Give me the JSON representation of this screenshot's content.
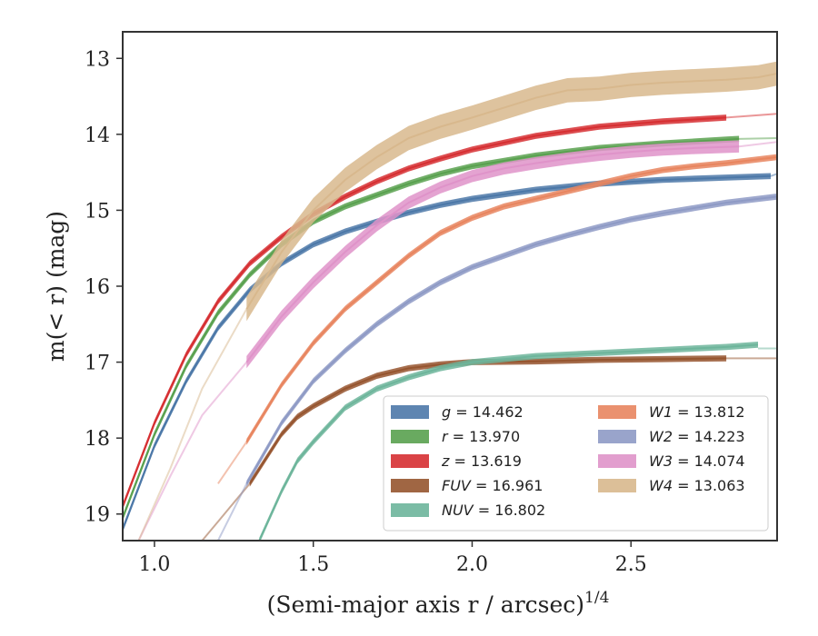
{
  "chart_data": {
    "type": "line",
    "xlabel": "(Semi-major axis r / arcsec)",
    "xlabel_sup": "1/4",
    "ylabel": "m(< r) (mag)",
    "xlim": [
      0.9,
      2.96
    ],
    "ylim": [
      19.35,
      12.65
    ],
    "y_inverted": true,
    "grid": false,
    "legend_position": "lower-right",
    "xticks": [
      1.0,
      1.5,
      2.0,
      2.5
    ],
    "xtick_labels": [
      "1.0",
      "1.5",
      "2.0",
      "2.5"
    ],
    "yticks": [
      13,
      14,
      15,
      16,
      17,
      18,
      19
    ],
    "ytick_labels": [
      "13",
      "14",
      "15",
      "16",
      "17",
      "18",
      "19"
    ],
    "series": [
      {
        "key": "g",
        "name": "g",
        "value": "14.462",
        "color": "#4c78a8",
        "x": [
          0.9,
          1.0,
          1.1,
          1.2,
          1.3,
          1.4,
          1.5,
          1.6,
          1.7,
          1.8,
          1.9,
          2.0,
          2.2,
          2.4,
          2.6,
          2.8,
          2.94
        ],
        "y": [
          19.2,
          18.1,
          17.25,
          16.55,
          16.05,
          15.7,
          15.45,
          15.28,
          15.15,
          15.03,
          14.93,
          14.85,
          14.73,
          14.65,
          14.6,
          14.57,
          14.55
        ],
        "x_model": [
          2.94,
          2.96
        ],
        "y_model": [
          14.55,
          14.52
        ],
        "band": 0.04
      },
      {
        "key": "r",
        "name": "r",
        "value": "13.970",
        "color": "#59a14f",
        "x": [
          0.9,
          1.0,
          1.1,
          1.2,
          1.3,
          1.4,
          1.5,
          1.6,
          1.7,
          1.8,
          1.9,
          2.0,
          2.2,
          2.4,
          2.6,
          2.8,
          2.84
        ],
        "y": [
          19.05,
          17.95,
          17.05,
          16.35,
          15.85,
          15.45,
          15.15,
          14.95,
          14.8,
          14.65,
          14.52,
          14.42,
          14.28,
          14.18,
          14.12,
          14.07,
          14.06
        ],
        "x_model": [
          2.84,
          2.96
        ],
        "y_model": [
          14.06,
          14.05
        ],
        "band": 0.04
      },
      {
        "key": "z",
        "name": "z",
        "value": "13.619",
        "color": "#d62f32",
        "x": [
          0.9,
          1.0,
          1.1,
          1.2,
          1.3,
          1.4,
          1.5,
          1.6,
          1.7,
          1.8,
          1.9,
          2.0,
          2.2,
          2.4,
          2.6,
          2.8
        ],
        "y": [
          18.9,
          17.8,
          16.9,
          16.2,
          15.7,
          15.35,
          15.05,
          14.82,
          14.62,
          14.45,
          14.32,
          14.2,
          14.02,
          13.9,
          13.83,
          13.78
        ],
        "x_model": [
          2.8,
          2.96
        ],
        "y_model": [
          13.78,
          13.73
        ],
        "band": 0.04
      },
      {
        "key": "FUV",
        "name": "FUV",
        "value": "16.961",
        "color": "#96552f",
        "x": [
          1.3,
          1.4,
          1.45,
          1.5,
          1.6,
          1.7,
          1.8,
          1.9,
          2.0,
          2.2,
          2.4,
          2.6,
          2.8
        ],
        "y": [
          18.6,
          17.95,
          17.72,
          17.58,
          17.35,
          17.18,
          17.08,
          17.03,
          17.0,
          16.99,
          16.97,
          16.96,
          16.95
        ],
        "x_model": [
          1.15,
          1.2,
          1.25,
          1.3
        ],
        "y_model": [
          19.35,
          19.1,
          18.85,
          18.6
        ],
        "x_model2": [
          2.8,
          2.96
        ],
        "y_model2": [
          16.95,
          16.95
        ],
        "band": 0.04
      },
      {
        "key": "NUV",
        "name": "NUV",
        "value": "16.802",
        "color": "#6db59b",
        "x": [
          1.33,
          1.4,
          1.45,
          1.5,
          1.6,
          1.7,
          1.8,
          1.9,
          2.0,
          2.2,
          2.4,
          2.6,
          2.8,
          2.9
        ],
        "y": [
          19.35,
          18.7,
          18.3,
          18.05,
          17.6,
          17.35,
          17.2,
          17.08,
          17.0,
          16.92,
          16.88,
          16.84,
          16.8,
          16.77
        ],
        "x_model": [
          1.29,
          1.33
        ],
        "y_model": [
          19.35,
          19.35
        ],
        "x_model2": [
          2.9,
          2.96
        ],
        "y_model2": [
          16.82,
          16.82
        ],
        "band": 0.04
      },
      {
        "key": "W1",
        "name": "W1",
        "value": "13.812",
        "color": "#e8855f",
        "x": [
          1.29,
          1.4,
          1.5,
          1.6,
          1.7,
          1.8,
          1.9,
          2.0,
          2.1,
          2.2,
          2.3,
          2.4,
          2.5,
          2.6,
          2.7,
          2.8,
          2.96
        ],
        "y": [
          18.05,
          17.3,
          16.75,
          16.3,
          15.95,
          15.6,
          15.3,
          15.1,
          14.95,
          14.85,
          14.75,
          14.65,
          14.55,
          14.47,
          14.42,
          14.38,
          14.3
        ],
        "x_model": [
          1.2,
          1.29
        ],
        "y_model": [
          18.6,
          18.05
        ],
        "band": 0.04
      },
      {
        "key": "W2",
        "name": "W2",
        "value": "14.223",
        "color": "#8e9ac5",
        "x": [
          1.29,
          1.4,
          1.5,
          1.6,
          1.7,
          1.8,
          1.9,
          2.0,
          2.1,
          2.2,
          2.3,
          2.4,
          2.5,
          2.6,
          2.7,
          2.8,
          2.96
        ],
        "y": [
          18.6,
          17.8,
          17.25,
          16.85,
          16.5,
          16.2,
          15.95,
          15.75,
          15.6,
          15.45,
          15.33,
          15.22,
          15.12,
          15.04,
          14.97,
          14.9,
          14.82
        ],
        "x_model": [
          1.2,
          1.29
        ],
        "y_model": [
          19.35,
          18.6
        ],
        "band": 0.04
      },
      {
        "key": "W3",
        "name": "W3",
        "value": "14.074",
        "color": "#df93c9",
        "x": [
          1.29,
          1.4,
          1.5,
          1.6,
          1.7,
          1.8,
          1.9,
          2.0,
          2.1,
          2.2,
          2.3,
          2.4,
          2.5,
          2.6,
          2.7,
          2.84
        ],
        "y": [
          17.0,
          16.4,
          15.95,
          15.55,
          15.2,
          14.9,
          14.7,
          14.55,
          14.45,
          14.38,
          14.32,
          14.27,
          14.23,
          14.2,
          14.18,
          14.16
        ],
        "x_model": [
          0.95,
          1.05,
          1.15,
          1.29
        ],
        "y_model": [
          19.35,
          18.5,
          17.7,
          17.0
        ],
        "x_model2": [
          2.84,
          2.96
        ],
        "y_model2": [
          14.16,
          14.1
        ],
        "band": 0.08
      },
      {
        "key": "W4",
        "name": "W4",
        "value": "13.063",
        "color": "#d8b88d",
        "x": [
          1.29,
          1.4,
          1.5,
          1.6,
          1.7,
          1.8,
          1.9,
          2.0,
          2.1,
          2.2,
          2.3,
          2.4,
          2.5,
          2.6,
          2.7,
          2.8,
          2.9,
          2.96
        ],
        "y": [
          16.3,
          15.55,
          15.0,
          14.6,
          14.3,
          14.05,
          13.9,
          13.78,
          13.65,
          13.52,
          13.42,
          13.4,
          13.35,
          13.32,
          13.3,
          13.28,
          13.25,
          13.2
        ],
        "x_model": [
          0.95,
          1.05,
          1.15,
          1.29
        ],
        "y_model": [
          19.35,
          18.4,
          17.35,
          16.3
        ],
        "band": 0.16
      }
    ]
  }
}
